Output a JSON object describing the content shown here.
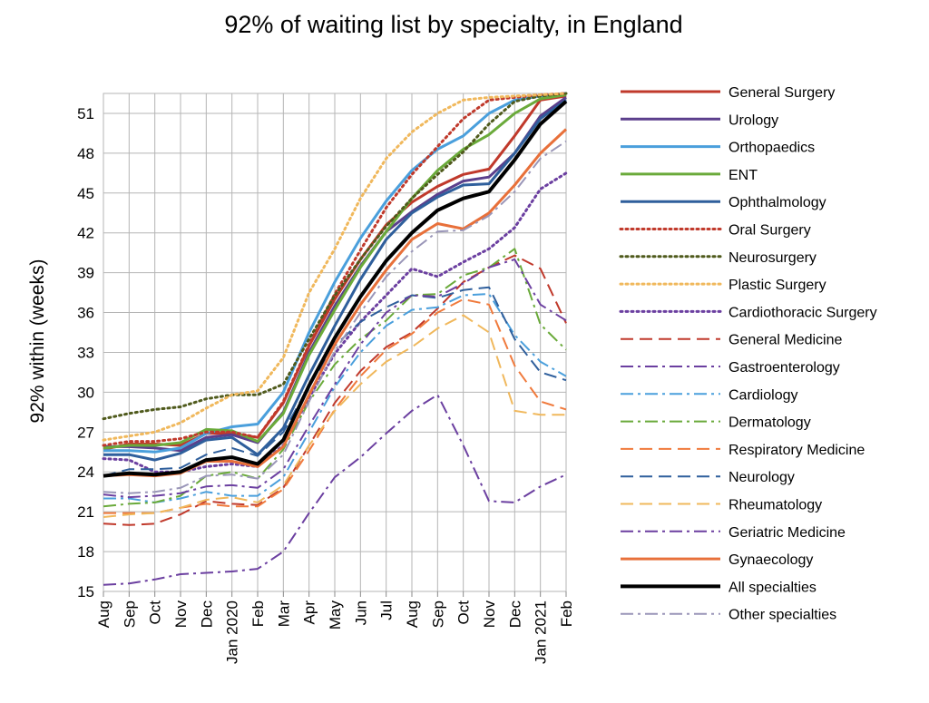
{
  "chart_data": {
    "type": "line",
    "title": "92% of waiting list by specialty, in England",
    "ylabel": "92% within (weeks)",
    "xlabel": "",
    "x": [
      "Aug",
      "Sep",
      "Oct",
      "Nov",
      "Dec",
      "Jan 2020",
      "Feb",
      "Mar",
      "Apr",
      "May",
      "Jun",
      "Jul",
      "Aug",
      "Sep",
      "Oct",
      "Nov",
      "Dec",
      "Jan 2021",
      "Feb"
    ],
    "yticks": [
      15,
      18,
      21,
      24,
      27,
      30,
      33,
      36,
      39,
      42,
      45,
      48,
      51
    ],
    "ylim": [
      15,
      52.5
    ],
    "grid": true,
    "legend_position": "right",
    "series": [
      {
        "name": "General Surgery",
        "color": "#c0392b",
        "dash": "solid",
        "width": 3,
        "values": [
          25.7,
          26.1,
          26.1,
          26.0,
          26.9,
          26.9,
          26.6,
          29.2,
          33.5,
          37.0,
          40.0,
          42.6,
          44.3,
          45.5,
          46.4,
          46.8,
          49.3,
          52.0,
          52.3
        ]
      },
      {
        "name": "Urology",
        "color": "#5b3f8c",
        "dash": "solid",
        "width": 3,
        "values": [
          25.9,
          25.9,
          25.8,
          25.6,
          26.6,
          26.8,
          26.2,
          28.5,
          33.0,
          36.5,
          39.5,
          42.1,
          43.6,
          44.9,
          45.9,
          46.2,
          48.0,
          50.8,
          52.2
        ]
      },
      {
        "name": "Orthopaedics",
        "color": "#4a9fdc",
        "dash": "solid",
        "width": 3,
        "values": [
          25.6,
          25.6,
          25.5,
          25.8,
          26.9,
          27.4,
          27.6,
          30.0,
          34.5,
          38.3,
          41.6,
          44.4,
          46.7,
          48.3,
          49.3,
          51.0,
          52.0,
          52.3,
          52.5
        ]
      },
      {
        "name": "ENT",
        "color": "#6aaa3a",
        "dash": "solid",
        "width": 3,
        "values": [
          25.8,
          26.0,
          26.0,
          26.2,
          27.2,
          27.1,
          26.3,
          28.4,
          32.8,
          36.2,
          39.4,
          42.1,
          44.6,
          46.7,
          48.3,
          49.4,
          51.0,
          52.1,
          52.4
        ]
      },
      {
        "name": "Ophthalmology",
        "color": "#2f5f9c",
        "dash": "solid",
        "width": 3,
        "values": [
          25.3,
          25.3,
          24.9,
          25.4,
          26.4,
          26.6,
          25.3,
          27.3,
          31.3,
          35.0,
          38.5,
          41.5,
          43.5,
          44.7,
          45.6,
          45.7,
          48.0,
          50.6,
          52.0
        ]
      },
      {
        "name": "Oral Surgery",
        "color": "#c0392b",
        "dash": "dotted",
        "width": 3,
        "values": [
          26.0,
          26.3,
          26.3,
          26.5,
          27.0,
          27.0,
          26.6,
          29.3,
          33.6,
          37.4,
          40.7,
          43.9,
          46.4,
          48.5,
          50.6,
          52.0,
          52.2,
          52.4,
          52.5
        ]
      },
      {
        "name": "Neurosurgery",
        "color": "#4f5a1c",
        "dash": "dotted",
        "width": 3,
        "values": [
          28.0,
          28.4,
          28.7,
          28.9,
          29.5,
          29.8,
          29.8,
          30.6,
          34.0,
          37.3,
          40.0,
          42.5,
          44.6,
          46.4,
          48.1,
          50.2,
          51.9,
          52.3,
          52.5
        ]
      },
      {
        "name": "Plastic Surgery",
        "color": "#f0b85c",
        "dash": "dotted",
        "width": 3,
        "values": [
          26.4,
          26.7,
          27.0,
          27.7,
          28.8,
          29.8,
          30.1,
          32.6,
          37.5,
          40.8,
          44.6,
          47.6,
          49.6,
          51.0,
          52.0,
          52.2,
          52.3,
          52.4,
          52.5
        ]
      },
      {
        "name": "Cardiothoracic Surgery",
        "color": "#6b3fa0",
        "dash": "dotted",
        "width": 3,
        "values": [
          25.0,
          24.9,
          24.0,
          24.0,
          24.4,
          24.6,
          24.4,
          26.0,
          29.6,
          32.9,
          35.3,
          37.3,
          39.3,
          38.7,
          39.8,
          40.8,
          42.4,
          45.3,
          46.5
        ]
      },
      {
        "name": "General Medicine",
        "color": "#c0392b",
        "dash": "dashed",
        "width": 2,
        "values": [
          20.1,
          20.0,
          20.1,
          20.8,
          21.8,
          21.6,
          21.5,
          22.8,
          26.0,
          29.2,
          31.6,
          33.4,
          34.5,
          36.3,
          38.3,
          39.4,
          40.3,
          39.3,
          35.2
        ]
      },
      {
        "name": "Gastroenterology",
        "color": "#6b3fa0",
        "dash": "dashdot",
        "width": 2,
        "values": [
          15.5,
          15.6,
          15.9,
          16.3,
          16.4,
          16.5,
          16.7,
          18.0,
          20.9,
          23.6,
          25.1,
          26.9,
          28.6,
          29.8,
          26.0,
          21.8,
          21.7,
          22.9,
          23.8
        ]
      },
      {
        "name": "Cardiology",
        "color": "#4a9fdc",
        "dash": "dashdot",
        "width": 2,
        "values": [
          22.0,
          22.0,
          21.7,
          22.0,
          22.5,
          22.2,
          22.2,
          23.6,
          27.0,
          30.4,
          33.0,
          35.0,
          36.2,
          36.4,
          37.3,
          37.4,
          34.3,
          32.3,
          31.2
        ]
      },
      {
        "name": "Dermatology",
        "color": "#6aaa3a",
        "dash": "dashdot",
        "width": 2,
        "values": [
          21.4,
          21.6,
          21.7,
          22.2,
          23.7,
          24.0,
          23.5,
          25.7,
          29.3,
          32.1,
          34.0,
          35.4,
          37.3,
          37.4,
          38.8,
          39.4,
          40.8,
          35.1,
          33.2
        ]
      },
      {
        "name": "Respiratory Medicine",
        "color": "#f07a3c",
        "dash": "dashed",
        "width": 2,
        "values": [
          20.9,
          20.9,
          20.9,
          21.3,
          21.6,
          21.4,
          21.4,
          22.7,
          25.6,
          28.7,
          31.2,
          33.2,
          34.4,
          36.0,
          37.0,
          36.6,
          32.0,
          29.3,
          28.7
        ]
      },
      {
        "name": "Neurology",
        "color": "#2f5f9c",
        "dash": "dashed",
        "width": 2,
        "values": [
          23.7,
          24.2,
          24.2,
          24.3,
          25.3,
          25.8,
          25.2,
          27.0,
          30.5,
          33.5,
          35.3,
          36.4,
          37.3,
          37.1,
          37.7,
          37.9,
          34.0,
          31.5,
          30.9
        ]
      },
      {
        "name": "Rheumatology",
        "color": "#f0b85c",
        "dash": "dashed",
        "width": 2,
        "values": [
          20.6,
          20.8,
          20.9,
          21.3,
          21.9,
          22.1,
          21.7,
          23.0,
          26.0,
          28.6,
          30.6,
          32.3,
          33.4,
          34.8,
          35.8,
          34.5,
          28.6,
          28.3,
          28.3
        ]
      },
      {
        "name": "Geriatric Medicine",
        "color": "#6b3fa0",
        "dash": "dashdot",
        "width": 2,
        "values": [
          22.3,
          22.1,
          22.2,
          22.4,
          22.9,
          23.0,
          22.8,
          24.2,
          27.5,
          30.6,
          33.6,
          36.0,
          37.3,
          37.2,
          38.2,
          39.4,
          40.0,
          36.6,
          35.4
        ]
      },
      {
        "name": "Gynaecology",
        "color": "#e8703a",
        "dash": "solid",
        "width": 3,
        "values": [
          23.7,
          23.8,
          23.7,
          23.9,
          24.8,
          24.8,
          24.4,
          25.9,
          29.8,
          33.6,
          36.6,
          39.2,
          41.5,
          42.7,
          42.3,
          43.5,
          45.6,
          48.0,
          49.8
        ]
      },
      {
        "name": "All specialties",
        "color": "#000000",
        "dash": "solid",
        "width": 4,
        "values": [
          23.7,
          23.9,
          23.8,
          24.0,
          24.9,
          25.1,
          24.6,
          26.4,
          30.5,
          34.1,
          37.2,
          39.9,
          42.0,
          43.7,
          44.6,
          45.1,
          47.5,
          50.2,
          51.9
        ]
      },
      {
        "name": "Other specialties",
        "color": "#9a96b8",
        "dash": "dashdot",
        "width": 2,
        "values": [
          22.5,
          22.4,
          22.5,
          22.8,
          23.7,
          23.8,
          23.5,
          25.3,
          29.3,
          33.1,
          36.0,
          38.7,
          40.6,
          42.1,
          42.2,
          43.3,
          45.1,
          47.6,
          48.9
        ]
      }
    ]
  }
}
